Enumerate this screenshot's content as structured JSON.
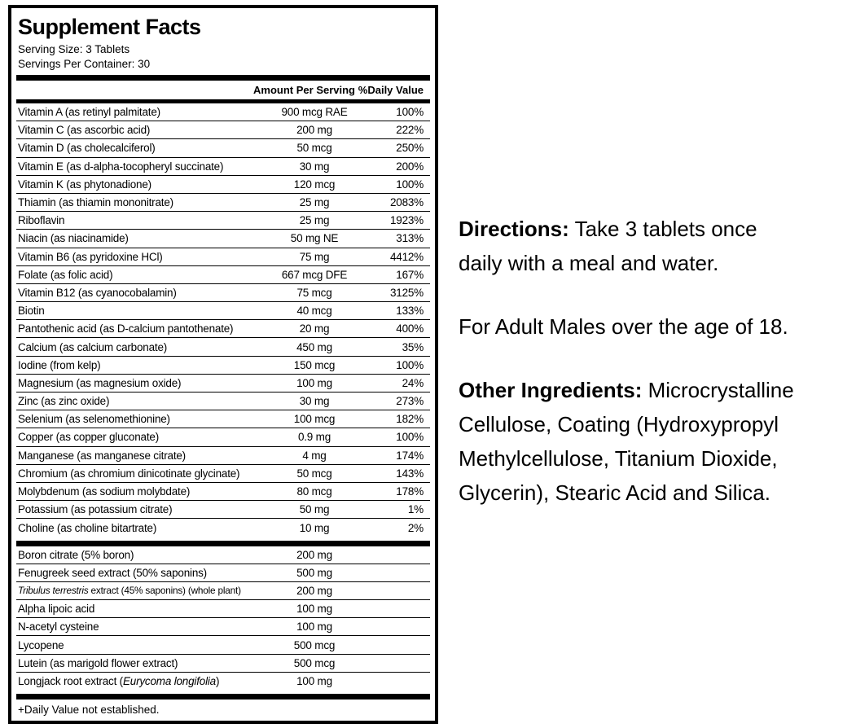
{
  "label": {
    "title": "Supplement Facts",
    "serving_size": "Serving Size: 3 Tablets",
    "servings_per_container": "Servings Per Container: 30",
    "col_amount": "Amount Per Serving",
    "col_dv": "%Daily Value",
    "main_rows": [
      {
        "name": "Vitamin A (as retinyl palmitate)",
        "amount": "900 mcg RAE",
        "dv": "100%"
      },
      {
        "name": "Vitamin C (as ascorbic acid)",
        "amount": "200 mg",
        "dv": "222%"
      },
      {
        "name": "Vitamin D (as cholecalciferol)",
        "amount": "50 mcg",
        "dv": "250%"
      },
      {
        "name": "Vitamin E (as d-alpha-tocopheryl succinate)",
        "amount": "30 mg",
        "dv": "200%"
      },
      {
        "name": "Vitamin K (as phytonadione)",
        "amount": "120 mcg",
        "dv": "100%"
      },
      {
        "name": "Thiamin (as thiamin mononitrate)",
        "amount": "25 mg",
        "dv": "2083%"
      },
      {
        "name": "Riboflavin",
        "amount": "25 mg",
        "dv": "1923%"
      },
      {
        "name": "Niacin (as niacinamide)",
        "amount": "50 mg NE",
        "dv": "313%"
      },
      {
        "name": "Vitamin B6 (as pyridoxine HCl)",
        "amount": "75 mg",
        "dv": "4412%"
      },
      {
        "name": "Folate (as folic acid)",
        "amount": "667 mcg DFE",
        "dv": "167%"
      },
      {
        "name": "Vitamin B12 (as cyanocobalamin)",
        "amount": "75 mcg",
        "dv": "3125%"
      },
      {
        "name": "Biotin",
        "amount": "40 mcg",
        "dv": "133%"
      },
      {
        "name": "Pantothenic acid (as D-calcium pantothenate)",
        "amount": "20 mg",
        "dv": "400%"
      },
      {
        "name": "Calcium (as calcium carbonate)",
        "amount": "450 mg",
        "dv": "35%"
      },
      {
        "name": "Iodine (from kelp)",
        "amount": "150 mcg",
        "dv": "100%"
      },
      {
        "name": "Magnesium (as magnesium oxide)",
        "amount": "100 mg",
        "dv": "24%"
      },
      {
        "name": "Zinc (as zinc oxide)",
        "amount": "30 mg",
        "dv": "273%"
      },
      {
        "name": "Selenium (as selenomethionine)",
        "amount": "100 mcg",
        "dv": "182%"
      },
      {
        "name": "Copper (as copper gluconate)",
        "amount": "0.9 mg",
        "dv": "100%"
      },
      {
        "name": "Manganese (as manganese citrate)",
        "amount": "4 mg",
        "dv": "174%"
      },
      {
        "name": "Chromium (as chromium dinicotinate glycinate)",
        "amount": "50 mcg",
        "dv": "143%"
      },
      {
        "name": "Molybdenum (as sodium molybdate)",
        "amount": "80 mcg",
        "dv": "178%"
      },
      {
        "name": "Potassium (as potassium citrate)",
        "amount": "50 mg",
        "dv": "1%"
      },
      {
        "name": "Choline (as choline bitartrate)",
        "amount": "10 mg",
        "dv": "2%"
      }
    ],
    "extra_rows": [
      {
        "segments": [
          {
            "t": "Boron citrate (5% boron)"
          }
        ],
        "amount": "200 mg"
      },
      {
        "segments": [
          {
            "t": "Fenugreek seed extract (50% saponins)"
          }
        ],
        "amount": "500 mg"
      },
      {
        "segments": [
          {
            "t": "Tribulus terrestris",
            "i": true
          },
          {
            "t": " extract (45% saponins) (whole plant)"
          }
        ],
        "amount": "200 mg"
      },
      {
        "segments": [
          {
            "t": "Alpha lipoic acid"
          }
        ],
        "amount": "100 mg"
      },
      {
        "segments": [
          {
            "t": "N-acetyl cysteine"
          }
        ],
        "amount": "100 mg"
      },
      {
        "segments": [
          {
            "t": "Lycopene"
          }
        ],
        "amount": "500 mcg"
      },
      {
        "segments": [
          {
            "t": "Lutein (as marigold flower extract)"
          }
        ],
        "amount": "500 mcg"
      },
      {
        "segments": [
          {
            "t": "Longjack root extract ("
          },
          {
            "t": "Eurycoma longifolia",
            "i": true
          },
          {
            "t": ")"
          }
        ],
        "amount": "100 mg"
      }
    ],
    "footnote": "+Daily Value not established."
  },
  "right_panel": {
    "paragraphs": [
      {
        "bold_prefix": "Directions:",
        "lines": [
          " Take 3 tablets once",
          "daily with a meal and water."
        ]
      },
      {
        "bold_prefix": "",
        "lines": [
          "For Adult Males over the age of 18."
        ]
      },
      {
        "bold_prefix": "Other Ingredients:",
        "lines": [
          " Microcrystalline",
          "Cellulose, Coating (Hydroxypropyl",
          "Methylcellulose, Titanium Dioxide,",
          "Glycerin), Stearic Acid and Silica."
        ]
      }
    ]
  }
}
